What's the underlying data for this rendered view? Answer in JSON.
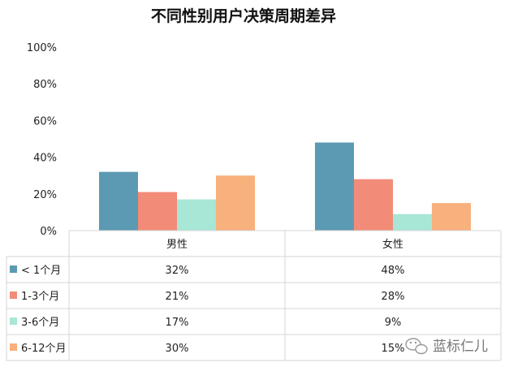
{
  "chart_data": {
    "type": "bar",
    "title": "不同性别用户决策周期差异",
    "categories": [
      "男性",
      "女性"
    ],
    "series": [
      {
        "name": "< 1个月",
        "color": "#5b9ab2",
        "values": [
          32,
          48
        ],
        "labels": [
          "32%",
          "48%"
        ]
      },
      {
        "name": "1-3个月",
        "color": "#f28b77",
        "values": [
          21,
          28
        ],
        "labels": [
          "21%",
          "28%"
        ]
      },
      {
        "name": "3-6个月",
        "color": "#a8e6d6",
        "values": [
          17,
          9
        ],
        "labels": [
          "17%",
          "9%"
        ]
      },
      {
        "name": "6-12个月",
        "color": "#f8b07c",
        "values": [
          30,
          15
        ],
        "labels": [
          "30%",
          "15%"
        ]
      }
    ],
    "ylim": [
      0,
      100
    ],
    "yticks": [
      0,
      20,
      40,
      60,
      80,
      100
    ],
    "ytick_labels": [
      "0%",
      "20%",
      "40%",
      "60%",
      "80%",
      "100%"
    ],
    "grid": false,
    "legend": "data-table"
  },
  "watermark": {
    "text": "蓝标仁儿",
    "icon": "wechat-icon"
  }
}
